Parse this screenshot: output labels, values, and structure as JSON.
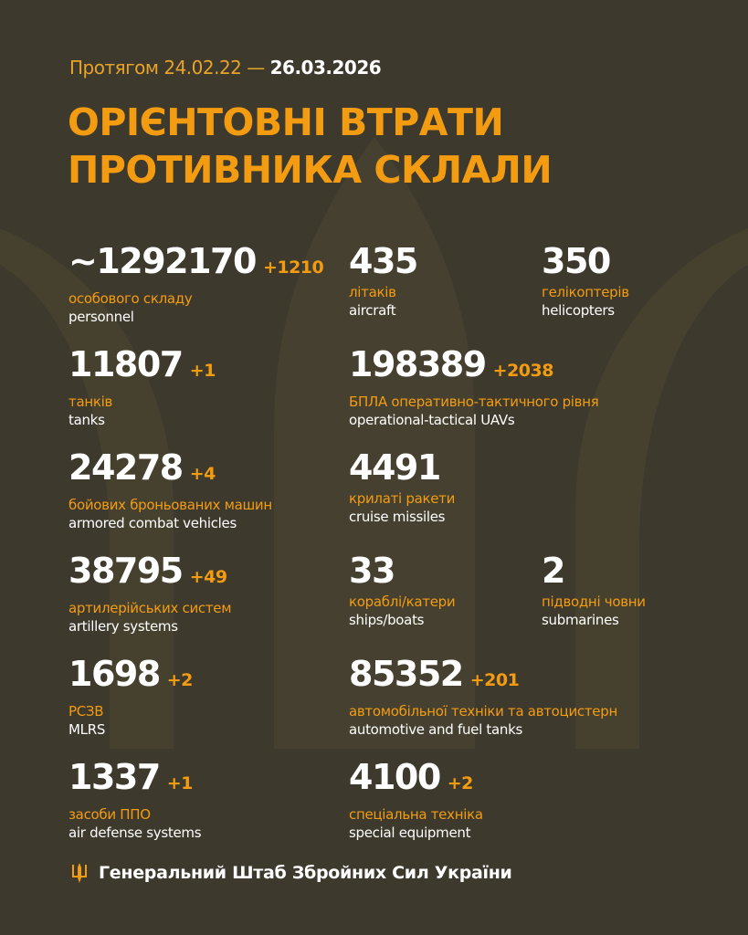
{
  "header": {
    "period_prefix": "Протягом 24.02.22 —",
    "period_end": "26.03.2026",
    "title_line1": "ОРІЄНТОВНІ ВТРАТИ",
    "title_line2": "ПРОТИВНИКА СКЛАЛИ"
  },
  "colors": {
    "background": "#3d392d",
    "accent": "#f39c12",
    "text": "#ffffff"
  },
  "stats": [
    {
      "value": "~1292170",
      "delta": "+1210",
      "ua": "особового складу",
      "en": "personnel"
    },
    {
      "value": "435",
      "delta": "",
      "ua": "літаків",
      "en": "aircraft"
    },
    {
      "value": "350",
      "delta": "",
      "ua": "гелікоптерів",
      "en": "helicopters"
    },
    {
      "value": "11807",
      "delta": "+1",
      "ua": "танків",
      "en": "tanks"
    },
    {
      "value": "198389",
      "delta": "+2038",
      "ua": "БПЛА оперативно-тактичного рівня",
      "en": "operational-tactical UAVs"
    },
    {
      "value": "24278",
      "delta": "+4",
      "ua": "бойових броньованих машин",
      "en": "armored combat vehicles"
    },
    {
      "value": "4491",
      "delta": "",
      "ua": "крилаті ракети",
      "en": "cruise missiles"
    },
    {
      "value": "38795",
      "delta": "+49",
      "ua": "артилерійських систем",
      "en": "artillery systems"
    },
    {
      "value": "33",
      "delta": "",
      "ua": "кораблі/катери",
      "en": "ships/boats"
    },
    {
      "value": "2",
      "delta": "",
      "ua": "підводні човни",
      "en": "submarines"
    },
    {
      "value": "1698",
      "delta": "+2",
      "ua": "РСЗВ",
      "en": "MLRS"
    },
    {
      "value": "85352",
      "delta": "+201",
      "ua": "автомобільної техніки та автоцистерн",
      "en": "automotive and fuel tanks"
    },
    {
      "value": "1337",
      "delta": "+1",
      "ua": "засоби ППО",
      "en": "air defense systems"
    },
    {
      "value": "4100",
      "delta": "+2",
      "ua": "спеціальна техніка",
      "en": "special equipment"
    }
  ],
  "footer": {
    "icon": "trident-icon",
    "text": "Генеральний Штаб Збройних Сил України"
  }
}
